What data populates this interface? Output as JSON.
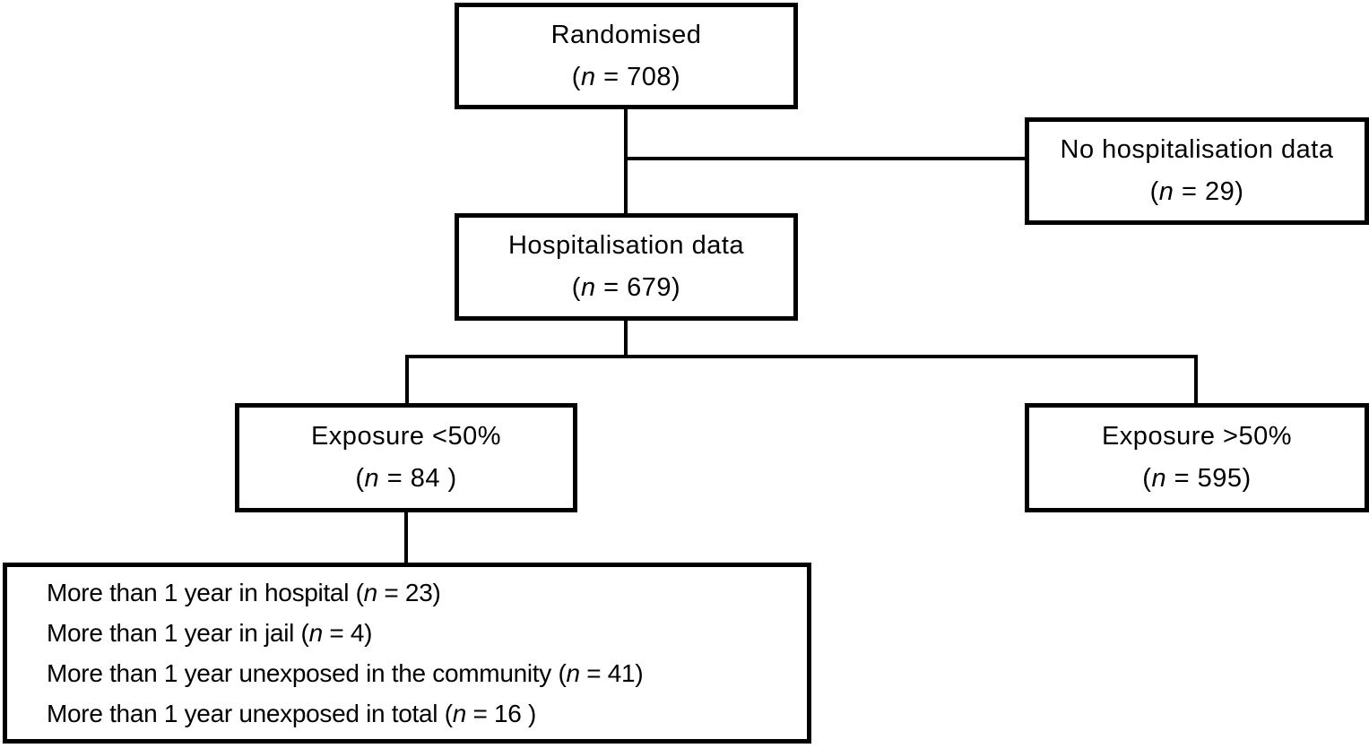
{
  "figure": {
    "type": "flowchart",
    "background_color": "#ffffff",
    "line_color": "#000000",
    "nodes": {
      "randomised": {
        "title": "Randomised",
        "open": "(",
        "n": "n",
        "rest": " = 708)"
      },
      "no_hosp": {
        "title": "No hospitalisation data",
        "open": "(",
        "n": "n",
        "rest": " = 29)"
      },
      "hosp": {
        "title": "Hospitalisation data",
        "open": "(",
        "n": "n",
        "rest": " = 679)"
      },
      "exp_lt": {
        "title": "Exposure <50%",
        "open": "(",
        "n": "n",
        "rest": " = 84 )"
      },
      "exp_gt": {
        "title": "Exposure >50%",
        "open": "(",
        "n": "n",
        "rest": " = 595)"
      },
      "outcomes": {
        "lines": [
          {
            "pre": "More than 1 year in hospital (",
            "n": "n",
            "post": " = 23)"
          },
          {
            "pre": "More than 1 year in jail (",
            "n": "n",
            "post": " = 4)"
          },
          {
            "pre": "More than 1 year unexposed in the community (",
            "n": "n",
            "post": " = 41)"
          },
          {
            "pre": "More than 1 year unexposed in total (",
            "n": "n",
            "post": " = 16 )"
          }
        ]
      }
    },
    "edges": [
      "randomised -> hosp",
      "randomised -> no_hosp",
      "hosp -> exp_lt",
      "hosp -> exp_gt",
      "exp_lt -> outcomes"
    ]
  }
}
